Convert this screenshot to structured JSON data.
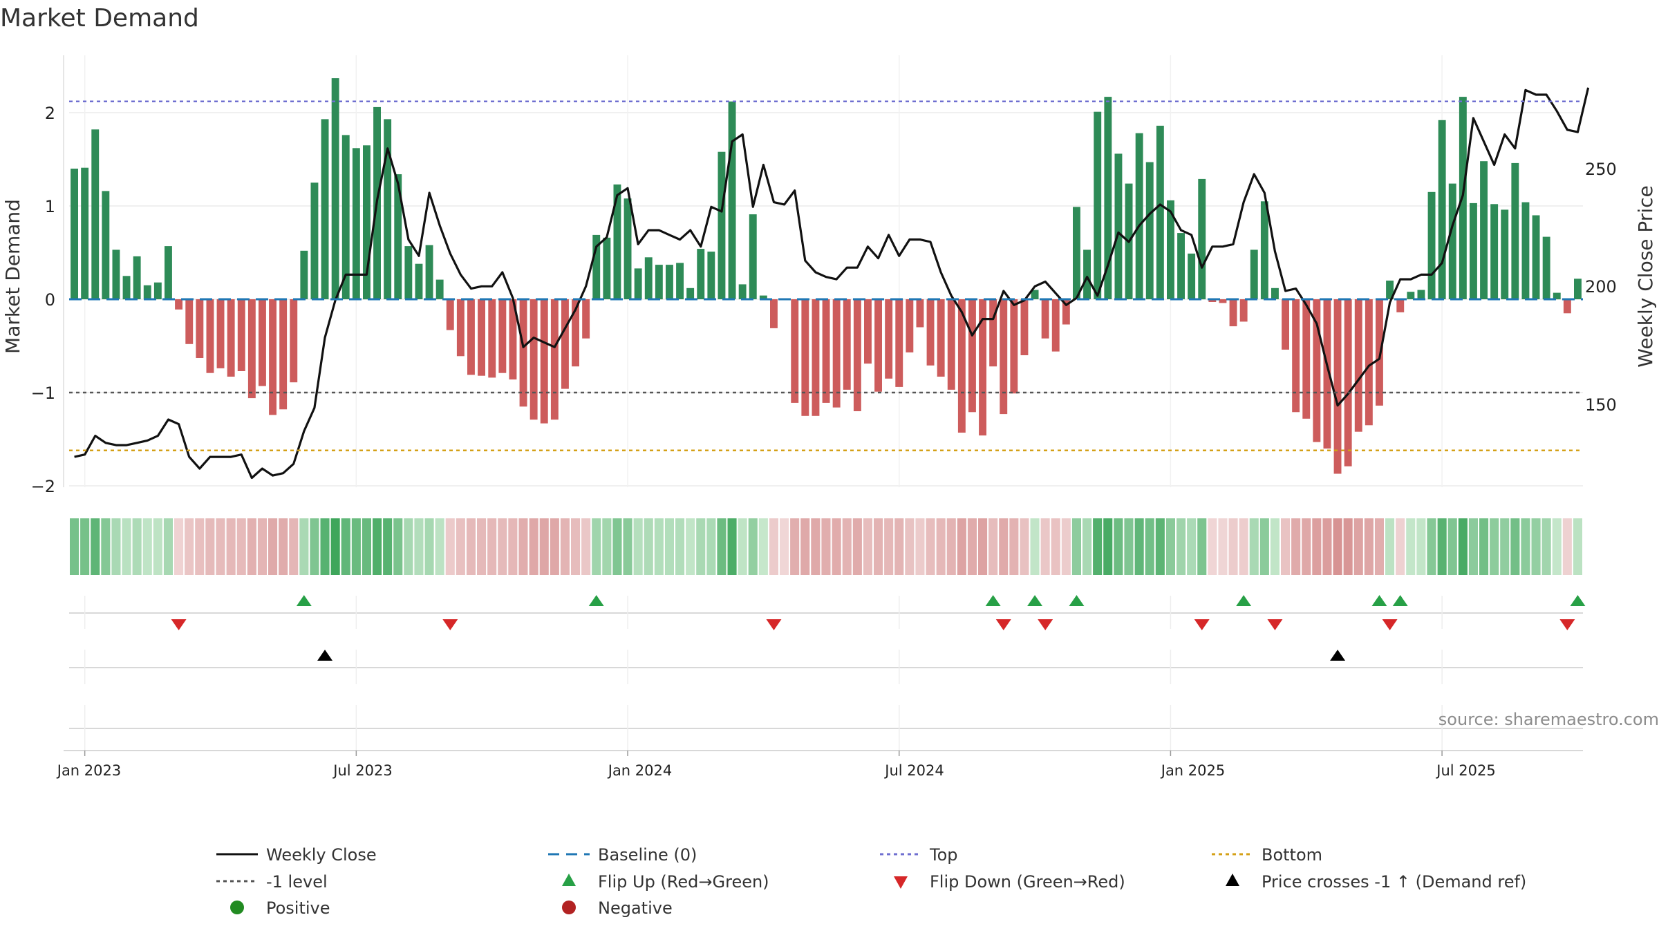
{
  "chart_data": {
    "type": "bar",
    "title": "Market Demand",
    "ylabel": "Market Demand",
    "y2label": "Weekly Close Price",
    "ylim": [
      -2.3,
      2.6
    ],
    "y_ticks": [
      "2",
      "1",
      "0",
      "−1",
      "−2"
    ],
    "y_tick_values": [
      2,
      1,
      0,
      -1,
      -2
    ],
    "y2lim": [
      120,
      296
    ],
    "y2_ticks": [
      "250",
      "200",
      "150"
    ],
    "y2_tick_values": [
      250,
      200,
      150
    ],
    "x_ticks": [
      {
        "label": "Jan 2023",
        "week": 1
      },
      {
        "label": "Jul 2023",
        "week": 27
      },
      {
        "label": "Jan 2024",
        "week": 53
      },
      {
        "label": "Jul 2024",
        "week": 79
      },
      {
        "label": "Jan 2025",
        "week": 105
      },
      {
        "label": "Jul 2025",
        "week": 131
      }
    ],
    "reference_lines": {
      "top": 2.12,
      "minus_one": -1,
      "bottom": -1.62,
      "baseline": 0
    },
    "demand": [
      1.4,
      1.41,
      1.82,
      1.16,
      0.53,
      0.25,
      0.46,
      0.15,
      0.18,
      0.57,
      -0.11,
      -0.48,
      -0.63,
      -0.79,
      -0.74,
      -0.83,
      -0.77,
      -1.06,
      -0.93,
      -1.24,
      -1.18,
      -0.89,
      0.52,
      1.25,
      1.93,
      2.37,
      1.76,
      1.62,
      1.65,
      2.06,
      1.93,
      1.34,
      0.57,
      0.38,
      0.58,
      0.21,
      -0.33,
      -0.61,
      -0.81,
      -0.82,
      -0.84,
      -0.79,
      -0.86,
      -1.15,
      -1.29,
      -1.33,
      -1.29,
      -0.96,
      -0.72,
      -0.42,
      0.69,
      0.66,
      1.23,
      1.08,
      0.33,
      0.45,
      0.37,
      0.37,
      0.39,
      0.12,
      0.54,
      0.51,
      1.58,
      2.12,
      0.16,
      0.91,
      0.04,
      -0.31,
      -0.01,
      -1.11,
      -1.25,
      -1.25,
      -1.11,
      -1.16,
      -0.97,
      -1.2,
      -0.69,
      -0.99,
      -0.85,
      -0.94,
      -0.57,
      -0.3,
      -0.71,
      -0.83,
      -0.97,
      -1.43,
      -1.21,
      -1.46,
      -0.72,
      -1.23,
      -1.01,
      -0.6,
      0.1,
      -0.42,
      -0.56,
      -0.27,
      0.99,
      0.53,
      2.01,
      2.17,
      1.56,
      1.24,
      1.78,
      1.47,
      1.86,
      1.06,
      0.71,
      0.49,
      1.29,
      -0.03,
      -0.04,
      -0.29,
      -0.24,
      0.53,
      1.05,
      0.12,
      -0.54,
      -1.21,
      -1.28,
      -1.53,
      -1.6,
      -1.87,
      -1.79,
      -1.42,
      -1.35,
      -1.14,
      0.2,
      -0.14,
      0.08,
      0.1,
      1.15,
      1.92,
      1.24,
      2.17,
      1.03,
      1.48,
      1.02,
      0.96,
      1.46,
      1.04,
      0.9,
      0.67,
      0.07,
      -0.15,
      0.22
    ],
    "weekly_close": [
      [
        0,
        133
      ],
      [
        1,
        134
      ],
      [
        2,
        142
      ],
      [
        3,
        139
      ],
      [
        4,
        138
      ],
      [
        5,
        138
      ],
      [
        6,
        139
      ],
      [
        7,
        140
      ],
      [
        8,
        142
      ],
      [
        9,
        149
      ],
      [
        10,
        147
      ],
      [
        11,
        133
      ],
      [
        12,
        128
      ],
      [
        13,
        133
      ],
      [
        14,
        133
      ],
      [
        15,
        133
      ],
      [
        16,
        134
      ],
      [
        17,
        124
      ],
      [
        18,
        128
      ],
      [
        19,
        125
      ],
      [
        20,
        126
      ],
      [
        21,
        130
      ],
      [
        22,
        144
      ],
      [
        23,
        154
      ],
      [
        24,
        184
      ],
      [
        25,
        200
      ],
      [
        26,
        211
      ],
      [
        27,
        211
      ],
      [
        28,
        211
      ],
      [
        29,
        243
      ],
      [
        30,
        265
      ],
      [
        31,
        250
      ],
      [
        32,
        226
      ],
      [
        33,
        219
      ],
      [
        34,
        246
      ],
      [
        35,
        232
      ],
      [
        36,
        220
      ],
      [
        37,
        211
      ],
      [
        38,
        205
      ],
      [
        39,
        206
      ],
      [
        40,
        206
      ],
      [
        41,
        212
      ],
      [
        42,
        201
      ],
      [
        43,
        180
      ],
      [
        44,
        184
      ],
      [
        45,
        182
      ],
      [
        46,
        180
      ],
      [
        47,
        188
      ],
      [
        48,
        196
      ],
      [
        49,
        206
      ],
      [
        50,
        223
      ],
      [
        51,
        227
      ],
      [
        52,
        245
      ],
      [
        53,
        248
      ],
      [
        54,
        224
      ],
      [
        55,
        230
      ],
      [
        56,
        230
      ],
      [
        57,
        228
      ],
      [
        58,
        226
      ],
      [
        59,
        230
      ],
      [
        60,
        223
      ],
      [
        61,
        240
      ],
      [
        62,
        238
      ],
      [
        63,
        268
      ],
      [
        64,
        271
      ],
      [
        65,
        240
      ],
      [
        66,
        258
      ],
      [
        67,
        242
      ],
      [
        68,
        241
      ],
      [
        69,
        247
      ],
      [
        70,
        217
      ],
      [
        71,
        212
      ],
      [
        72,
        210
      ],
      [
        73,
        209
      ],
      [
        74,
        214
      ],
      [
        75,
        214
      ],
      [
        76,
        223
      ],
      [
        77,
        218
      ],
      [
        78,
        228
      ],
      [
        79,
        219
      ],
      [
        80,
        226
      ],
      [
        81,
        226
      ],
      [
        82,
        225
      ],
      [
        83,
        212
      ],
      [
        84,
        202
      ],
      [
        85,
        195
      ],
      [
        86,
        185
      ],
      [
        87,
        192
      ],
      [
        88,
        192
      ],
      [
        89,
        204
      ],
      [
        90,
        198
      ],
      [
        91,
        200
      ],
      [
        92,
        206
      ],
      [
        93,
        208
      ],
      [
        94,
        203
      ],
      [
        95,
        198
      ],
      [
        96,
        201
      ],
      [
        97,
        210
      ],
      [
        98,
        202
      ],
      [
        99,
        215
      ],
      [
        100,
        229
      ],
      [
        101,
        225
      ],
      [
        102,
        232
      ],
      [
        103,
        237
      ],
      [
        104,
        241
      ],
      [
        105,
        238
      ],
      [
        106,
        230
      ],
      [
        107,
        228
      ],
      [
        108,
        214
      ],
      [
        109,
        223
      ],
      [
        110,
        223
      ],
      [
        111,
        224
      ],
      [
        112,
        242
      ],
      [
        113,
        254
      ],
      [
        114,
        246
      ],
      [
        115,
        221
      ],
      [
        116,
        204
      ],
      [
        117,
        205
      ],
      [
        118,
        198
      ],
      [
        119,
        190
      ],
      [
        120,
        172
      ],
      [
        121,
        155
      ],
      [
        122,
        160
      ],
      [
        123,
        166
      ],
      [
        124,
        172
      ],
      [
        125,
        175
      ],
      [
        126,
        199
      ],
      [
        127,
        209
      ],
      [
        128,
        209
      ],
      [
        129,
        211
      ],
      [
        130,
        211
      ],
      [
        131,
        216
      ],
      [
        132,
        232
      ],
      [
        133,
        245
      ],
      [
        134,
        278
      ],
      [
        135,
        268
      ],
      [
        136,
        258
      ],
      [
        137,
        271
      ],
      [
        138,
        265
      ],
      [
        139,
        290
      ],
      [
        140,
        288
      ],
      [
        141,
        288
      ],
      [
        142,
        281
      ],
      [
        143,
        273
      ],
      [
        144,
        272
      ],
      [
        145,
        291
      ]
    ],
    "flip_up_weeks": [
      22,
      50,
      88,
      92,
      96,
      112,
      125,
      127,
      144
    ],
    "flip_down_weeks": [
      10,
      36,
      67,
      89,
      93,
      108,
      115,
      126,
      143
    ],
    "price_cross_weeks": [
      24,
      121
    ],
    "source": "source: sharemaestro.com",
    "legend": [
      {
        "label": "Weekly Close"
      },
      {
        "label": "Baseline (0)"
      },
      {
        "label": "Top"
      },
      {
        "label": "Bottom"
      },
      {
        "label": "-1 level"
      },
      {
        "label": "Flip Up (Red→Green)"
      },
      {
        "label": "Flip Down (Green→Red)"
      },
      {
        "label": "Price crosses -1 ↑ (Demand ref)"
      },
      {
        "label": "Positive"
      },
      {
        "label": "Negative"
      }
    ],
    "colors": {
      "positive": "#2e8b57",
      "negative": "#cd5c5c",
      "price": "#111111",
      "top": "#6f6fd0",
      "bottom": "#d4a017",
      "minus_one": "#555555",
      "baseline": "#1f77b4",
      "flip_up": "#27a046",
      "flip_down": "#d62728",
      "cross": "#000000",
      "legend_positive": "#228b22",
      "legend_negative": "#b22222"
    }
  }
}
